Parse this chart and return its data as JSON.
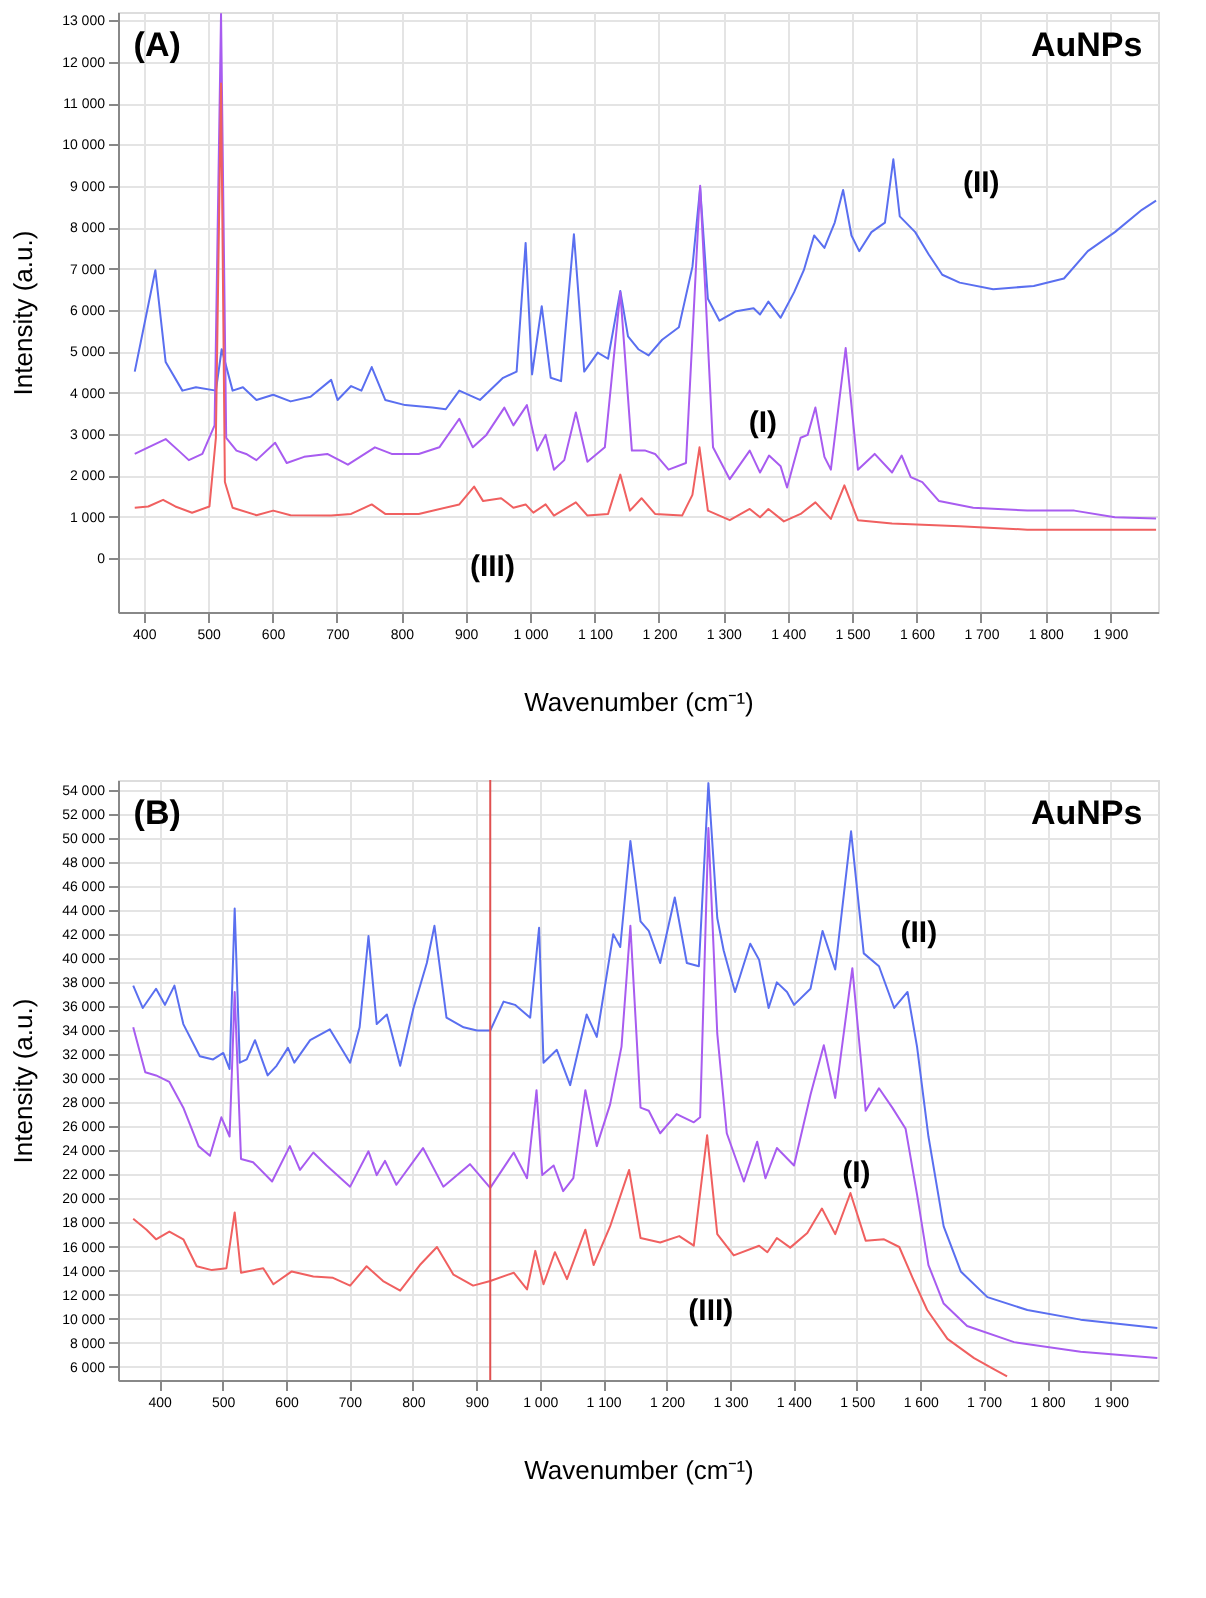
{
  "chart_data": [
    {
      "type": "line",
      "xlabel": "Wavenumber (cm⁻¹)",
      "ylabel": "Intensity (a.u.)",
      "grid": true,
      "legend": false,
      "marker": "none",
      "line_style": "solid",
      "xlim": [
        360,
        1975
      ],
      "ylim": [
        -1300,
        13200
      ],
      "xticks": [
        400,
        500,
        600,
        700,
        800,
        900,
        {
          "value": 1000,
          "label": "1 000"
        },
        {
          "value": 1100,
          "label": "1 100"
        },
        {
          "value": 1200,
          "label": "1 200"
        },
        {
          "value": 1300,
          "label": "1 300"
        },
        {
          "value": 1400,
          "label": "1 400"
        },
        {
          "value": 1500,
          "label": "1 500"
        },
        {
          "value": 1600,
          "label": "1 600"
        },
        {
          "value": 1700,
          "label": "1 700"
        },
        {
          "value": 1800,
          "label": "1 800"
        },
        {
          "value": 1900,
          "label": "1 900"
        }
      ],
      "yticks": [
        0,
        {
          "value": 1000,
          "label": "1 000"
        },
        {
          "value": 2000,
          "label": "2 000"
        },
        {
          "value": 3000,
          "label": "3 000"
        },
        {
          "value": 4000,
          "label": "4 000"
        },
        {
          "value": 5000,
          "label": "5 000"
        },
        {
          "value": 6000,
          "label": "6 000"
        },
        {
          "value": 7000,
          "label": "7 000"
        },
        {
          "value": 8000,
          "label": "8 000"
        },
        {
          "value": 9000,
          "label": "9 000"
        },
        {
          "value": 10000,
          "label": "10 000"
        },
        {
          "value": 11000,
          "label": "11 000"
        },
        {
          "value": 12000,
          "label": "12 000"
        },
        {
          "value": 13000,
          "label": "13 000"
        }
      ],
      "annotations": [
        "(A)",
        "AuNPs",
        "(II)",
        "(I)",
        "(III)"
      ],
      "series": [
        {
          "color": "#5a6ff0",
          "x": [
            386,
            418,
            434,
            460,
            481,
            512,
            521,
            538,
            554,
            575,
            601,
            628,
            659,
            691,
            701,
            722,
            738,
            754,
            775,
            806,
            848,
            869,
            890,
            922,
            958,
            979,
            993,
            1003,
            1018,
            1032,
            1048,
            1068,
            1084,
            1105,
            1121,
            1140,
            1152,
            1168,
            1184,
            1205,
            1231,
            1252,
            1264,
            1276,
            1294,
            1320,
            1347,
            1357,
            1370,
            1389,
            1410,
            1425,
            1441,
            1457,
            1473,
            1486,
            1499,
            1511,
            1530,
            1551,
            1564,
            1574,
            1598,
            1619,
            1640,
            1667,
            1719,
            1782,
            1829,
            1866,
            1908,
            1950,
            1972
          ],
          "values": [
            4510,
            6960,
            4740,
            4050,
            4130,
            4050,
            5050,
            4050,
            4130,
            3825,
            3950,
            3790,
            3900,
            4310,
            3825,
            4160,
            4050,
            4620,
            3825,
            3700,
            3640,
            3600,
            4050,
            3825,
            4360,
            4510,
            7620,
            4440,
            6090,
            4360,
            4280,
            7830,
            4510,
            4970,
            4820,
            6460,
            5360,
            5050,
            4900,
            5280,
            5580,
            7040,
            8950,
            6270,
            5740,
            5970,
            6040,
            5890,
            6200,
            5810,
            6430,
            6960,
            7800,
            7500,
            8110,
            8900,
            7800,
            7420,
            7880,
            8110,
            9640,
            8260,
            7880,
            7340,
            6850,
            6660,
            6500,
            6580,
            6760,
            7420,
            7880,
            8420,
            8640
          ]
        },
        {
          "color": "#a85cf0",
          "x": [
            386,
            407,
            434,
            454,
            470,
            491,
            510,
            520,
            528,
            544,
            559,
            575,
            604,
            622,
            649,
            685,
            717,
            759,
            785,
            827,
            859,
            890,
            911,
            932,
            960,
            974,
            995,
            1011,
            1024,
            1037,
            1053,
            1071,
            1089,
            1116,
            1140,
            1158,
            1179,
            1194,
            1215,
            1242,
            1264,
            1284,
            1310,
            1341,
            1357,
            1371,
            1389,
            1399,
            1420,
            1431,
            1443,
            1457,
            1467,
            1490,
            1509,
            1535,
            1562,
            1577,
            1591,
            1609,
            1635,
            1688,
            1772,
            1845,
            1908,
            1972
          ],
          "values": [
            2520,
            2680,
            2880,
            2600,
            2370,
            2520,
            3210,
            13150,
            2910,
            2600,
            2520,
            2370,
            2790,
            2300,
            2450,
            2520,
            2260,
            2680,
            2520,
            2520,
            2680,
            3370,
            2680,
            2980,
            3640,
            3210,
            3700,
            2600,
            2980,
            2140,
            2370,
            3520,
            2330,
            2680,
            6430,
            2600,
            2600,
            2520,
            2140,
            2300,
            9000,
            2680,
            1910,
            2600,
            2070,
            2480,
            2220,
            1710,
            2910,
            2980,
            3640,
            2450,
            2140,
            5080,
            2140,
            2520,
            2070,
            2480,
            1960,
            1840,
            1380,
            1220,
            1150,
            1150,
            990,
            960
          ]
        },
        {
          "color": "#f06060",
          "x": [
            386,
            407,
            430,
            449,
            475,
            502,
            512,
            520,
            526,
            538,
            575,
            601,
            628,
            691,
            722,
            754,
            775,
            827,
            890,
            913,
            927,
            955,
            974,
            993,
            1005,
            1024,
            1037,
            1071,
            1089,
            1121,
            1140,
            1155,
            1173,
            1194,
            1236,
            1252,
            1263,
            1276,
            1310,
            1341,
            1357,
            1370,
            1394,
            1420,
            1443,
            1467,
            1488,
            1509,
            1562,
            1667,
            1772,
            1972
          ],
          "values": [
            1220,
            1250,
            1410,
            1250,
            1100,
            1250,
            2910,
            11470,
            1840,
            1220,
            1040,
            1150,
            1040,
            1030,
            1070,
            1300,
            1070,
            1070,
            1300,
            1730,
            1380,
            1450,
            1220,
            1300,
            1100,
            1300,
            1030,
            1350,
            1030,
            1070,
            2020,
            1150,
            1450,
            1070,
            1030,
            1530,
            2680,
            1150,
            920,
            1190,
            990,
            1190,
            890,
            1070,
            1350,
            950,
            1760,
            920,
            840,
            770,
            690,
            690
          ]
        }
      ]
    },
    {
      "type": "line",
      "xlabel": "Wavenumber (cm⁻¹)",
      "ylabel": "Intensity (a.u.)",
      "grid": true,
      "legend": false,
      "marker": "none",
      "line_style": "solid",
      "xlim": [
        335,
        1975
      ],
      "ylim": [
        4900,
        54800
      ],
      "xticks": [
        400,
        500,
        600,
        700,
        800,
        900,
        {
          "value": 1000,
          "label": "1 000"
        },
        {
          "value": 1100,
          "label": "1 100"
        },
        {
          "value": 1200,
          "label": "1 200"
        },
        {
          "value": 1300,
          "label": "1 300"
        },
        {
          "value": 1400,
          "label": "1 400"
        },
        {
          "value": 1500,
          "label": "1 500"
        },
        {
          "value": 1600,
          "label": "1 600"
        },
        {
          "value": 1700,
          "label": "1 700"
        },
        {
          "value": 1800,
          "label": "1 800"
        },
        {
          "value": 1900,
          "label": "1 900"
        }
      ],
      "yticks": [
        {
          "value": 6000,
          "label": "6 000"
        },
        {
          "value": 8000,
          "label": "8 000"
        },
        {
          "value": 10000,
          "label": "10 000"
        },
        {
          "value": 12000,
          "label": "12 000"
        },
        {
          "value": 14000,
          "label": "14 000"
        },
        {
          "value": 16000,
          "label": "16 000"
        },
        {
          "value": 18000,
          "label": "18 000"
        },
        {
          "value": 20000,
          "label": "20 000"
        },
        {
          "value": 22000,
          "label": "22 000"
        },
        {
          "value": 24000,
          "label": "24 000"
        },
        {
          "value": 26000,
          "label": "26 000"
        },
        {
          "value": 28000,
          "label": "28 000"
        },
        {
          "value": 30000,
          "label": "30 000"
        },
        {
          "value": 32000,
          "label": "32 000"
        },
        {
          "value": 34000,
          "label": "34 000"
        },
        {
          "value": 36000,
          "label": "36 000"
        },
        {
          "value": 38000,
          "label": "38 000"
        },
        {
          "value": 40000,
          "label": "40 000"
        },
        {
          "value": 42000,
          "label": "42 000"
        },
        {
          "value": 44000,
          "label": "44 000"
        },
        {
          "value": 46000,
          "label": "46 000"
        },
        {
          "value": 48000,
          "label": "48 000"
        },
        {
          "value": 50000,
          "label": "50 000"
        },
        {
          "value": 52000,
          "label": "52 000"
        },
        {
          "value": 54000,
          "label": "54 000"
        }
      ],
      "ref_lines": [
        {
          "axis": "x",
          "value": 922,
          "color": "#e05050"
        }
      ],
      "annotations": [
        "(B)",
        "AuNPs",
        "(II)",
        "(I)",
        "(III)"
      ],
      "series": [
        {
          "color": "#5a6ff0",
          "x": [
            359,
            374,
            395,
            409,
            424,
            438,
            464,
            485,
            501,
            511,
            519,
            527,
            538,
            551,
            571,
            585,
            603,
            613,
            638,
            669,
            701,
            716,
            730,
            743,
            759,
            780,
            801,
            822,
            834,
            853,
            880,
            901,
            922,
            943,
            961,
            985,
            999,
            1006,
            1027,
            1048,
            1074,
            1090,
            1116,
            1127,
            1143,
            1159,
            1172,
            1190,
            1213,
            1232,
            1251,
            1266,
            1280,
            1290,
            1308,
            1332,
            1346,
            1361,
            1374,
            1390,
            1401,
            1427,
            1446,
            1466,
            1491,
            1511,
            1535,
            1559,
            1580,
            1595,
            1613,
            1637,
            1664,
            1706,
            1769,
            1853,
            1974
          ],
          "values": [
            37700,
            35840,
            37440,
            36100,
            37700,
            34500,
            31830,
            31560,
            32100,
            30760,
            44120,
            31290,
            31560,
            33160,
            30230,
            31030,
            32520,
            31290,
            33160,
            34070,
            31290,
            34230,
            41820,
            34500,
            35300,
            31030,
            35840,
            39580,
            42670,
            35030,
            34230,
            33960,
            33960,
            36370,
            36100,
            35030,
            42510,
            31290,
            32360,
            29420,
            35300,
            33430,
            41980,
            40910,
            49730,
            43050,
            42250,
            39580,
            45030,
            39580,
            39310,
            54540,
            43320,
            40640,
            37170,
            41180,
            39840,
            35840,
            37970,
            37170,
            36100,
            37440,
            42250,
            39040,
            50530,
            40380,
            39310,
            35840,
            37170,
            32630,
            25150,
            17670,
            13930,
            11790,
            10720,
            9920,
            9230
          ]
        },
        {
          "color": "#a85cf0",
          "x": [
            359,
            378,
            395,
            416,
            438,
            462,
            480,
            498,
            511,
            519,
            529,
            548,
            578,
            606,
            622,
            643,
            664,
            701,
            730,
            743,
            756,
            774,
            816,
            848,
            890,
            922,
            959,
            980,
            995,
            1004,
            1022,
            1037,
            1053,
            1072,
            1090,
            1111,
            1129,
            1143,
            1159,
            1172,
            1190,
            1216,
            1243,
            1253,
            1266,
            1280,
            1295,
            1322,
            1343,
            1356,
            1374,
            1401,
            1427,
            1448,
            1466,
            1493,
            1514,
            1535,
            1556,
            1577,
            1595,
            1613,
            1637,
            1674,
            1748,
            1853,
            1974
          ],
          "values": [
            34230,
            30490,
            30230,
            29690,
            27550,
            24350,
            23550,
            26750,
            25150,
            37170,
            23280,
            23010,
            21410,
            24350,
            22370,
            23820,
            22740,
            20980,
            23920,
            21940,
            23120,
            21140,
            24190,
            20980,
            22850,
            20880,
            23820,
            21680,
            29000,
            21940,
            22740,
            20610,
            21680,
            29000,
            24350,
            27820,
            32630,
            42670,
            27550,
            27290,
            25420,
            27020,
            26330,
            26750,
            50800,
            33700,
            25420,
            21410,
            24720,
            21680,
            24190,
            22740,
            28620,
            32740,
            28360,
            39150,
            27290,
            29160,
            27550,
            25790,
            20340,
            14460,
            11260,
            9390,
            8050,
            7250,
            6720
          ]
        },
        {
          "color": "#f06060",
          "x": [
            359,
            380,
            395,
            416,
            438,
            459,
            483,
            506,
            519,
            529,
            564,
            580,
            609,
            643,
            674,
            701,
            727,
            753,
            780,
            811,
            838,
            864,
            895,
            922,
            959,
            980,
            993,
            1006,
            1024,
            1043,
            1072,
            1085,
            1111,
            1141,
            1159,
            1190,
            1220,
            1243,
            1264,
            1280,
            1306,
            1346,
            1359,
            1374,
            1395,
            1422,
            1445,
            1466,
            1490,
            1514,
            1543,
            1567,
            1588,
            1611,
            1643,
            1685,
            1716,
            1737
          ],
          "values": [
            18310,
            17400,
            16600,
            17240,
            16600,
            14360,
            14040,
            14200,
            18840,
            13820,
            14200,
            12860,
            13930,
            13500,
            13400,
            12750,
            14360,
            13130,
            12330,
            14460,
            15960,
            13660,
            12750,
            13130,
            13820,
            12430,
            15640,
            12860,
            15530,
            13290,
            17400,
            14460,
            17670,
            22370,
            16710,
            16330,
            16870,
            16070,
            25260,
            17030,
            15260,
            16070,
            15530,
            16710,
            15910,
            17130,
            19160,
            17030,
            20450,
            16490,
            16600,
            15960,
            13400,
            10720,
            8320,
            6720,
            5810,
            5200
          ]
        }
      ]
    }
  ]
}
